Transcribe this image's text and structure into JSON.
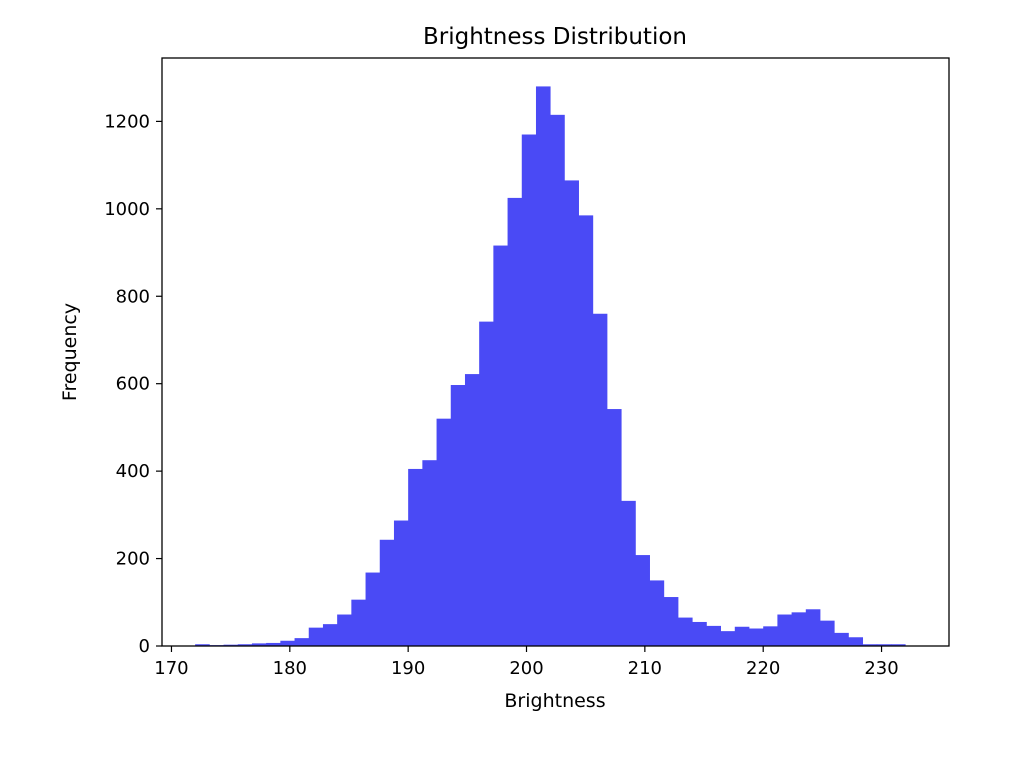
{
  "chart_data": {
    "type": "bar",
    "title": "Brightness Distribution",
    "xlabel": "Brightness",
    "ylabel": "Frequency",
    "xlim": [
      169.2,
      235.7
    ],
    "ylim": [
      0,
      1345
    ],
    "xticks": [
      170,
      180,
      190,
      200,
      210,
      220,
      230
    ],
    "yticks": [
      0,
      200,
      400,
      600,
      800,
      1000,
      1200
    ],
    "bar_color": "#4a4af5",
    "grid": false,
    "legend": "none",
    "bins": {
      "start": 172.0,
      "width": 1.2,
      "counts": [
        4,
        2,
        3,
        4,
        6,
        7,
        12,
        18,
        42,
        50,
        72,
        106,
        168,
        243,
        287,
        405,
        425,
        520,
        597,
        622,
        742,
        916,
        1025,
        1170,
        1280,
        1215,
        1065,
        985,
        760,
        542,
        332,
        208,
        150,
        112,
        65,
        55,
        46,
        34,
        44,
        40,
        45,
        72,
        77,
        84,
        58,
        30,
        20,
        4,
        4,
        4
      ]
    }
  }
}
